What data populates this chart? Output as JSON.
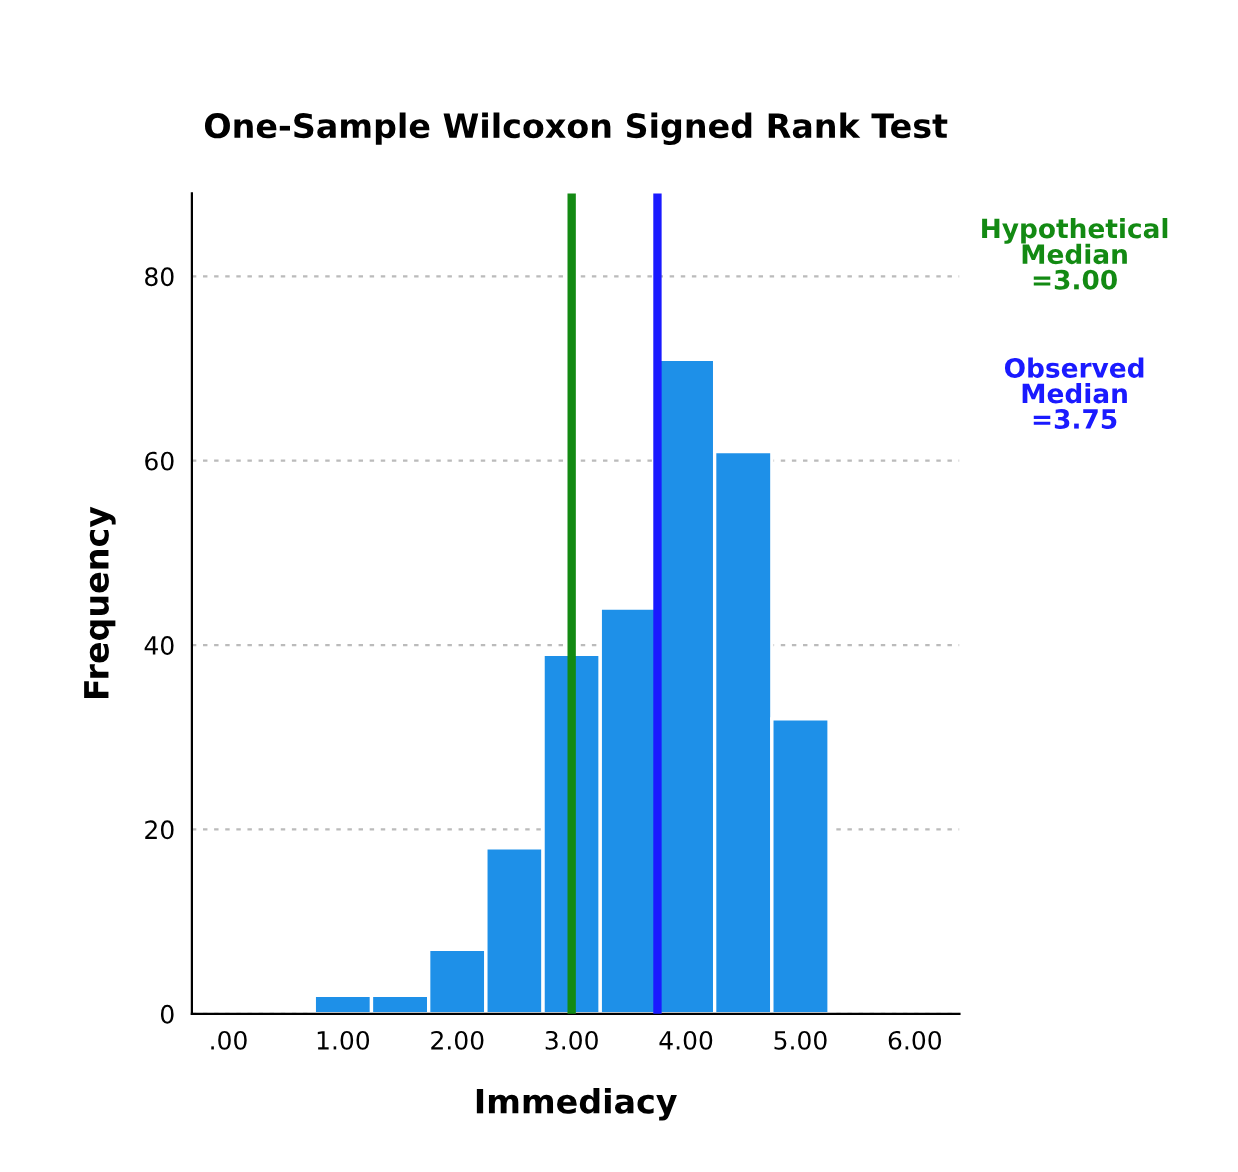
{
  "chart_data": {
    "type": "histogram",
    "title": "One-Sample Wilcoxon Signed Rank Test",
    "xlabel": "Immediacy",
    "ylabel": "Frequency",
    "bins": [
      0.75,
      1.25,
      1.75,
      2.25,
      2.75,
      3.25,
      3.75,
      4.25,
      4.75,
      5.25
    ],
    "values": [
      2,
      2,
      7,
      18,
      39,
      44,
      71,
      61,
      32
    ],
    "color": "#1e90e8",
    "xlim": [
      -0.32,
      6.39
    ],
    "xticks": [
      {
        "value": 0,
        "label": ".00"
      },
      {
        "value": 1,
        "label": "1.00"
      },
      {
        "value": 2,
        "label": "2.00"
      },
      {
        "value": 3,
        "label": "3.00"
      },
      {
        "value": 4,
        "label": "4.00"
      },
      {
        "value": 5,
        "label": "5.00"
      },
      {
        "value": 6,
        "label": "6.00"
      }
    ],
    "ylim": [
      0,
      89
    ],
    "yticks": [
      0,
      20,
      40,
      60,
      80
    ],
    "grid": "y",
    "ref_lines": [
      {
        "axis": "x",
        "value": 3.0,
        "label": "Hypothetical\nMedian\n=3.00",
        "color": "#138a13"
      },
      {
        "axis": "x",
        "value": 3.75,
        "label": "Observed\nMedian\n=3.75",
        "color": "#1a1aff"
      }
    ]
  }
}
